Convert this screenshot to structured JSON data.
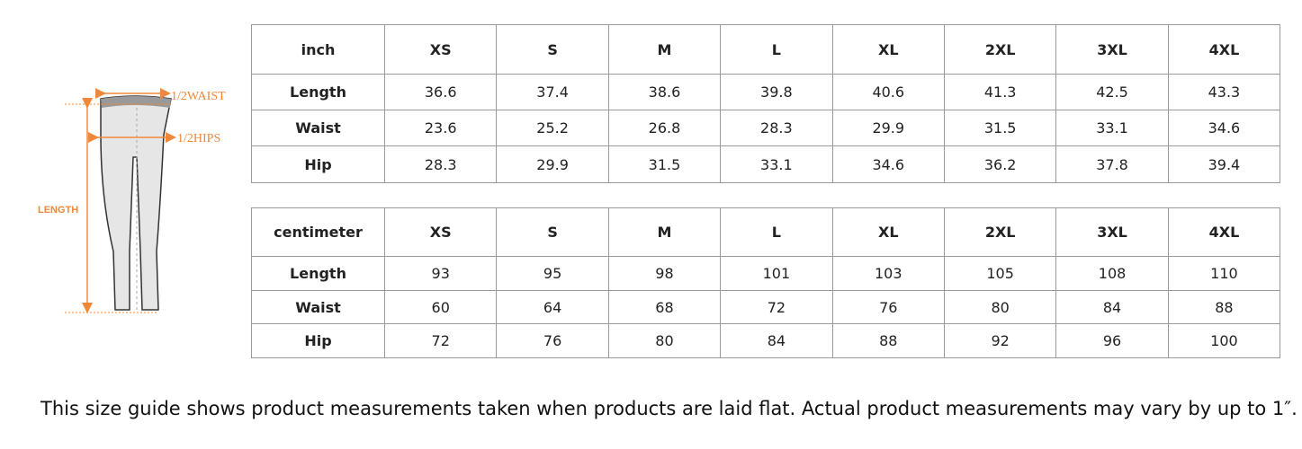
{
  "illustration": {
    "waist_label": "1/2WAIST",
    "hips_label": "1/2HIPS",
    "length_label": "LENGTH"
  },
  "tables": [
    {
      "header": [
        "inch",
        "XS",
        "S",
        "M",
        "L",
        "XL",
        "2XL",
        "3XL",
        "4XL"
      ],
      "rows": [
        [
          "Length",
          "36.6",
          "37.4",
          "38.6",
          "39.8",
          "40.6",
          "41.3",
          "42.5",
          "43.3"
        ],
        [
          "Waist",
          "23.6",
          "25.2",
          "26.8",
          "28.3",
          "29.9",
          "31.5",
          "33.1",
          "34.6"
        ],
        [
          "Hip",
          "28.3",
          "29.9",
          "31.5",
          "33.1",
          "34.6",
          "36.2",
          "37.8",
          "39.4"
        ]
      ]
    },
    {
      "header": [
        "centimeter",
        "XS",
        "S",
        "M",
        "L",
        "XL",
        "2XL",
        "3XL",
        "4XL"
      ],
      "rows": [
        [
          "Length",
          "93",
          "95",
          "98",
          "101",
          "103",
          "105",
          "108",
          "110"
        ],
        [
          "Waist",
          "60",
          "64",
          "68",
          "72",
          "76",
          "80",
          "84",
          "88"
        ],
        [
          "Hip",
          "72",
          "76",
          "80",
          "84",
          "88",
          "92",
          "96",
          "100"
        ]
      ]
    }
  ],
  "note": "This size guide shows product measurements taken when products are laid flat. Actual product measurements may vary by up to 1″."
}
